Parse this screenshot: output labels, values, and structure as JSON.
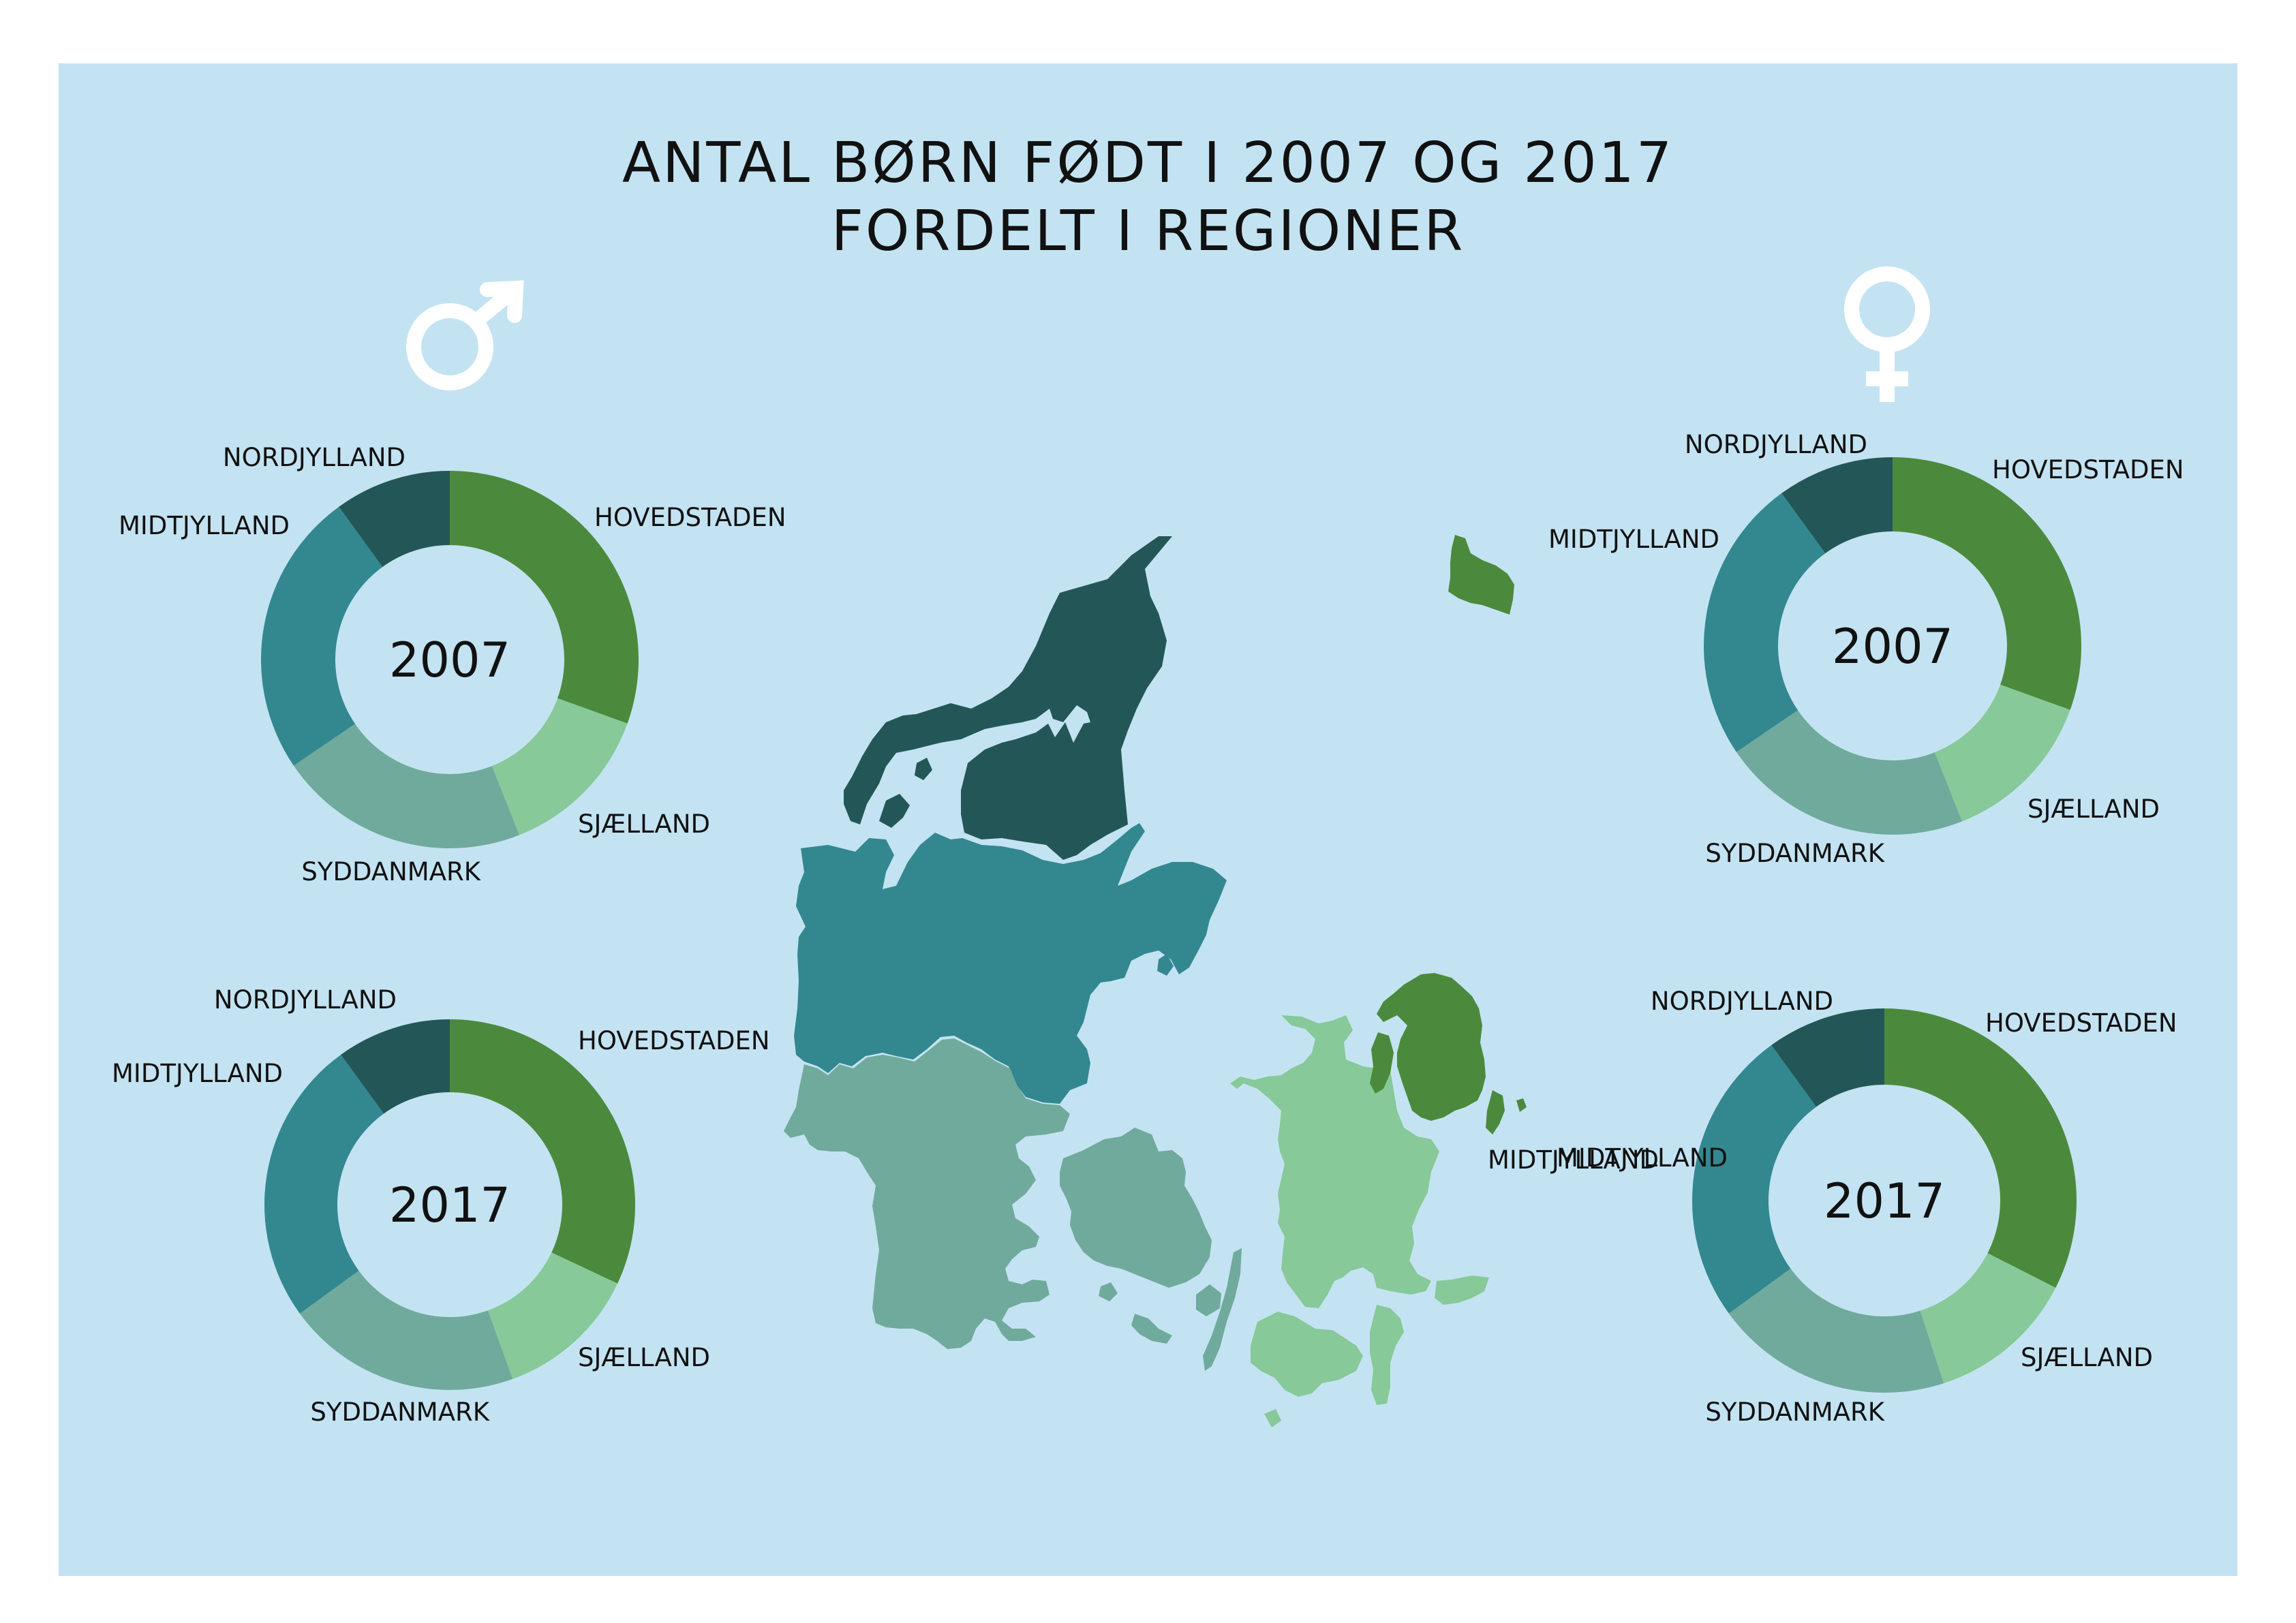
{
  "title": {
    "line1": "ANTAL BØRN FØDT I 2007 OG 2017",
    "line2": "FORDELT I REGIONER"
  },
  "icons": {
    "male": "male-symbol-icon",
    "female": "female-symbol-icon"
  },
  "colors": {
    "background": "#c3e3f2",
    "Hovedstaden": "#4b8a3c",
    "Sjælland": "#87c998",
    "Syddanmark": "#70aa9c",
    "Midtjylland": "#338890",
    "Nordjylland": "#235757"
  },
  "chart_data": [
    {
      "type": "pie",
      "year": "2007",
      "group": "male",
      "categories": [
        "HOVEDSTADEN",
        "SJÆLLAND",
        "SYDDANMARK",
        "MIDTJYLLAND",
        "NORDJYLLAND"
      ],
      "values": [
        30.5,
        13.5,
        21.5,
        24.5,
        10.0
      ],
      "title": "",
      "center_label": "2007"
    },
    {
      "type": "pie",
      "year": "2017",
      "group": "male",
      "categories": [
        "HOVEDSTADEN",
        "SJÆLLAND",
        "SYDDANMARK",
        "MIDTJYLLAND",
        "NORDJYLLAND"
      ],
      "values": [
        32.0,
        12.5,
        20.5,
        25.0,
        10.0
      ],
      "title": "",
      "center_label": "2017"
    },
    {
      "type": "pie",
      "year": "2007",
      "group": "female",
      "categories": [
        "HOVEDSTADEN",
        "SJÆLLAND",
        "SYDDANMARK",
        "MIDTJYLLAND",
        "NORDJYLLAND"
      ],
      "values": [
        30.5,
        13.5,
        21.5,
        24.5,
        10.0
      ],
      "title": "",
      "center_label": "2007"
    },
    {
      "type": "pie",
      "year": "2017",
      "group": "female",
      "categories": [
        "HOVEDSTADEN",
        "SJÆLLAND",
        "SYDDANMARK",
        "MIDTJYLLAND",
        "NORDJYLLAND"
      ],
      "values": [
        32.5,
        12.5,
        20.0,
        25.0,
        10.0
      ],
      "title": "",
      "center_label": "2017"
    }
  ],
  "map": {
    "regions": [
      "Nordjylland",
      "Midtjylland",
      "Syddanmark",
      "Sjælland",
      "Hovedstaden"
    ],
    "label": "MIDTJYLLAND"
  }
}
